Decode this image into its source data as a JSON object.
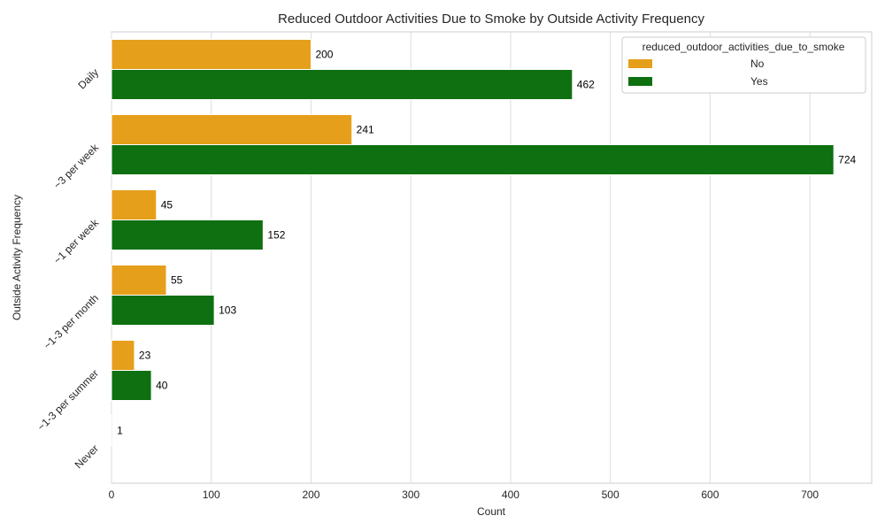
{
  "chart_data": {
    "type": "bar",
    "orientation": "horizontal",
    "title": "Reduced Outdoor Activities Due to Smoke by Outside Activity Frequency",
    "xlabel": "Count",
    "ylabel": "Outside Activity Frequency",
    "categories": [
      "Daily",
      "~3 per week",
      "~1 per week",
      "~1-3 per month",
      "~1-3 per summer",
      "Never"
    ],
    "series": [
      {
        "name": "No",
        "color": "#e69f1b",
        "values": [
          200,
          241,
          45,
          55,
          23,
          1
        ]
      },
      {
        "name": "Yes",
        "color": "#0e7010",
        "values": [
          462,
          724,
          152,
          103,
          40,
          null
        ]
      }
    ],
    "data_labels": [
      [
        "200",
        "241",
        "45",
        "55",
        "23",
        "1"
      ],
      [
        "462",
        "724",
        "152",
        "103",
        "40",
        ""
      ]
    ],
    "xlim": [
      0,
      762
    ],
    "xticks": [
      0,
      100,
      200,
      300,
      400,
      500,
      600,
      700
    ],
    "grid": true,
    "legend": {
      "title": "reduced_outdoor_activities_due_to_smoke",
      "placement": "top-right"
    }
  }
}
